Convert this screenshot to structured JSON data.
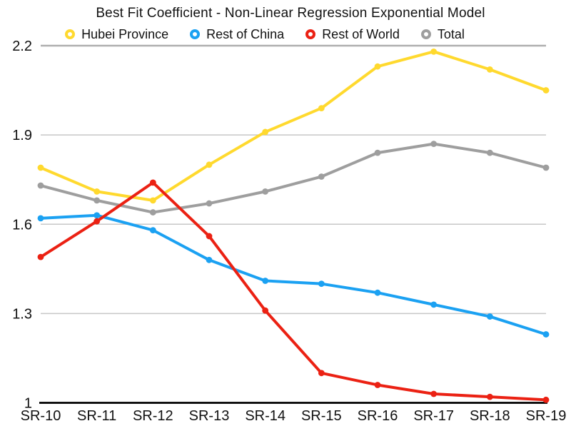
{
  "title": "Best Fit Coefficient - Non-Linear Regression Exponential Model",
  "legend": {
    "items": [
      {
        "label": "Hubei Province",
        "color": "#FFD92E"
      },
      {
        "label": "Rest of China",
        "color": "#1BA1F2"
      },
      {
        "label": "Rest of World",
        "color": "#EB2113"
      },
      {
        "label": "Total",
        "color": "#9E9E9E"
      }
    ]
  },
  "chart_data": {
    "type": "line",
    "title": "Best Fit Coefficient - Non-Linear Regression Exponential Model",
    "categories": [
      "SR-10",
      "SR-11",
      "SR-12",
      "SR-13",
      "SR-14",
      "SR-15",
      "SR-16",
      "SR-17",
      "SR-18",
      "SR-19"
    ],
    "series": [
      {
        "name": "Hubei Province",
        "color": "#FFD92E",
        "values": [
          1.79,
          1.71,
          1.68,
          1.8,
          1.91,
          1.99,
          2.13,
          2.18,
          2.12,
          2.05
        ]
      },
      {
        "name": "Rest of China",
        "color": "#1BA1F2",
        "values": [
          1.62,
          1.63,
          1.58,
          1.48,
          1.41,
          1.4,
          1.37,
          1.33,
          1.29,
          1.23
        ]
      },
      {
        "name": "Rest of World",
        "color": "#EB2113",
        "values": [
          1.49,
          1.61,
          1.74,
          1.56,
          1.31,
          1.1,
          1.06,
          1.03,
          1.02,
          1.01
        ]
      },
      {
        "name": "Total",
        "color": "#9E9E9E",
        "values": [
          1.73,
          1.68,
          1.64,
          1.67,
          1.71,
          1.76,
          1.84,
          1.87,
          1.84,
          1.79
        ]
      }
    ],
    "xlabel": "",
    "ylabel": "",
    "ylim": [
      1,
      2.2
    ],
    "y_ticks": [
      {
        "label": "2.2",
        "value": 2.2
      },
      {
        "label": "1.9",
        "value": 1.9
      },
      {
        "label": "1.6",
        "value": 1.6
      },
      {
        "label": "1.3",
        "value": 1.3
      },
      {
        "label": "1",
        "value": 1.0
      }
    ],
    "grid": true,
    "legend_position": "top"
  },
  "colors": {
    "gridline": "#C7C7C7",
    "top_gridline": "#AFAFAF",
    "axis": "#000000",
    "tick_text": "#111111"
  }
}
